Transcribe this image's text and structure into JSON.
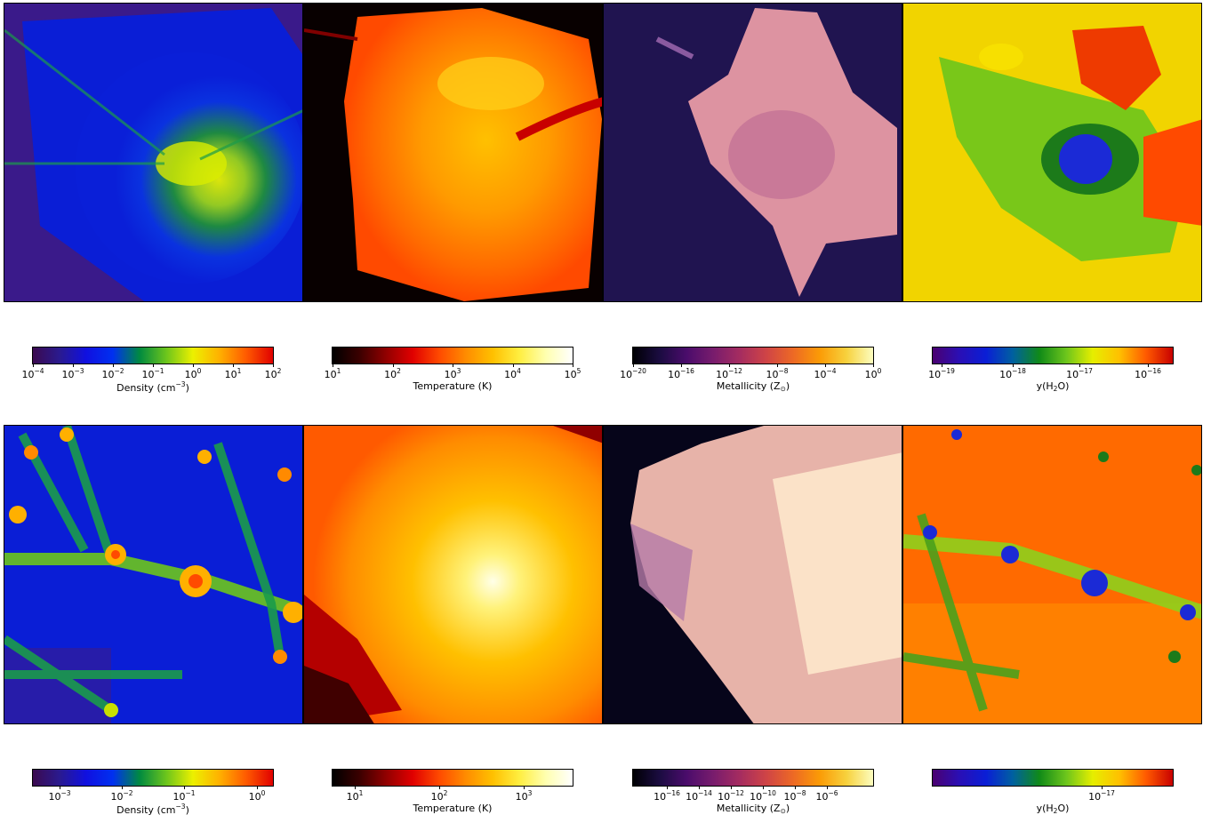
{
  "rows": [
    {
      "panels": [
        {
          "name": "density-map",
          "field": "Density",
          "cmap": "density"
        },
        {
          "name": "temperature-map",
          "field": "Temperature",
          "cmap": "temperature"
        },
        {
          "name": "metallicity-map",
          "field": "Metallicity",
          "cmap": "metallicity"
        },
        {
          "name": "h2o-map",
          "field": "y(H2O)",
          "cmap": "water"
        }
      ],
      "colorbars": [
        {
          "label_main": "Density (cm",
          "label_sup": "−3",
          "label_end": ")",
          "ticks": [
            {
              "base": "10",
              "exp": "−4"
            },
            {
              "base": "10",
              "exp": "−3"
            },
            {
              "base": "10",
              "exp": "−2"
            },
            {
              "base": "10",
              "exp": "−1"
            },
            {
              "base": "10",
              "exp": "0"
            },
            {
              "base": "10",
              "exp": "1"
            },
            {
              "base": "10",
              "exp": "2"
            }
          ]
        },
        {
          "label_main": "Temperature (K)",
          "label_sup": "",
          "label_end": "",
          "ticks": [
            {
              "base": "10",
              "exp": "1"
            },
            {
              "base": "10",
              "exp": "2"
            },
            {
              "base": "10",
              "exp": "3"
            },
            {
              "base": "10",
              "exp": "4"
            },
            {
              "base": "10",
              "exp": "5"
            }
          ]
        },
        {
          "label_main": "Metallicity (Z",
          "label_sub": "⊙",
          "label_end": ")",
          "ticks": [
            {
              "base": "10",
              "exp": "−20"
            },
            {
              "base": "10",
              "exp": "−16"
            },
            {
              "base": "10",
              "exp": "−12"
            },
            {
              "base": "10",
              "exp": "−8"
            },
            {
              "base": "10",
              "exp": "−4"
            },
            {
              "base": "10",
              "exp": "0"
            }
          ]
        },
        {
          "label_main": "y(H",
          "label_sub": "2",
          "label_end": "O)",
          "ticks": [
            {
              "base": "10",
              "exp": "−19"
            },
            {
              "base": "10",
              "exp": "−18"
            },
            {
              "base": "10",
              "exp": "−17"
            },
            {
              "base": "10",
              "exp": "−16"
            }
          ]
        }
      ]
    },
    {
      "panels": [
        {
          "name": "density-map",
          "field": "Density",
          "cmap": "density"
        },
        {
          "name": "temperature-map",
          "field": "Temperature",
          "cmap": "temperature"
        },
        {
          "name": "metallicity-map",
          "field": "Metallicity",
          "cmap": "metallicity"
        },
        {
          "name": "h2o-map",
          "field": "y(H2O)",
          "cmap": "water"
        }
      ],
      "colorbars": [
        {
          "label_main": "Density (cm",
          "label_sup": "−3",
          "label_end": ")",
          "ticks": [
            {
              "base": "10",
              "exp": "−3"
            },
            {
              "base": "10",
              "exp": "−2"
            },
            {
              "base": "10",
              "exp": "−1"
            },
            {
              "base": "10",
              "exp": "0"
            }
          ]
        },
        {
          "label_main": "Temperature (K)",
          "label_sup": "",
          "label_end": "",
          "ticks": [
            {
              "base": "10",
              "exp": "1"
            },
            {
              "base": "10",
              "exp": "2"
            },
            {
              "base": "10",
              "exp": "3"
            }
          ]
        },
        {
          "label_main": "Metallicity (Z",
          "label_sub": "⊙",
          "label_end": ")",
          "ticks": [
            {
              "base": "10",
              "exp": "−16"
            },
            {
              "base": "10",
              "exp": "−14"
            },
            {
              "base": "10",
              "exp": "−12"
            },
            {
              "base": "10",
              "exp": "−10"
            },
            {
              "base": "10",
              "exp": "−8"
            },
            {
              "base": "10",
              "exp": "−6"
            }
          ]
        },
        {
          "label_main": "y(H",
          "label_sub": "2",
          "label_end": "O)",
          "ticks": [
            {
              "base": "10",
              "exp": "−17"
            }
          ]
        }
      ]
    }
  ],
  "colormaps": {
    "density": [
      "#3b0a4f",
      "#2a1a8f",
      "#1010e0",
      "#0030f0",
      "#008a40",
      "#6cc51c",
      "#ecf000",
      "#ffb000",
      "#ff5a00",
      "#e00000"
    ],
    "temperature": [
      "#000000",
      "#3a0000",
      "#900000",
      "#e00000",
      "#ff4a00",
      "#ff8c00",
      "#ffc000",
      "#ffee40",
      "#ffffb0",
      "#ffffff"
    ],
    "metallicity": [
      "#000004",
      "#1b0c41",
      "#4a0c6b",
      "#781c6d",
      "#a52c60",
      "#cf4446",
      "#ed6925",
      "#fb9b06",
      "#f7d13d",
      "#fcfdbf"
    ],
    "metallicity_soft": [
      "#0c0825",
      "#2c1d5e",
      "#5e3a8c",
      "#8c4f9c",
      "#b76aa2",
      "#d88ea7",
      "#eeb0ab",
      "#f8cfb6",
      "#fde9cf",
      "#fff6e6"
    ],
    "water": [
      "#4b0070",
      "#2a0fb5",
      "#0a1ed6",
      "#0060a0",
      "#108a18",
      "#6cc51c",
      "#e6ee00",
      "#ffc000",
      "#ff5a00",
      "#c80000"
    ]
  }
}
